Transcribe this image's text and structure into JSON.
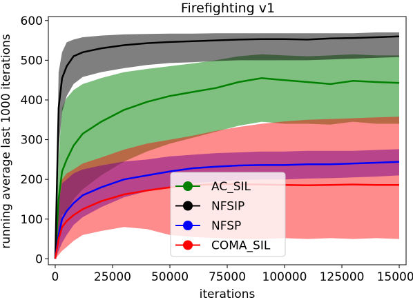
{
  "chart_data": {
    "type": "line",
    "title": "Firefighting v1",
    "xlabel": "iterations",
    "ylabel": "running average last 1000 iterations",
    "xlim": [
      -3000,
      153000
    ],
    "ylim": [
      -15,
      610
    ],
    "x_ticks": [
      0,
      25000,
      50000,
      75000,
      100000,
      125000,
      150000
    ],
    "y_ticks": [
      0,
      100,
      200,
      300,
      400,
      500,
      600
    ],
    "grid": false,
    "legend_position": "lower center",
    "x": [
      0,
      1500,
      3000,
      5000,
      8000,
      12000,
      20000,
      30000,
      40000,
      50000,
      60000,
      70000,
      80000,
      90000,
      100000,
      110000,
      120000,
      130000,
      140000,
      150000
    ],
    "series": [
      {
        "name": "AC_SIL",
        "color": "#008000",
        "values": [
          0,
          150,
          220,
          250,
          285,
          315,
          345,
          375,
          395,
          410,
          420,
          430,
          445,
          455,
          450,
          445,
          440,
          448,
          445,
          443
        ],
        "upper": [
          0,
          260,
          380,
          405,
          425,
          440,
          455,
          470,
          478,
          485,
          492,
          500,
          510,
          515,
          512,
          510,
          512,
          515,
          512,
          512
        ],
        "lower": [
          0,
          70,
          110,
          120,
          150,
          175,
          210,
          245,
          270,
          290,
          305,
          320,
          335,
          345,
          340,
          340,
          338,
          345,
          340,
          340
        ]
      },
      {
        "name": "NFSIP",
        "color": "#000000",
        "values": [
          0,
          380,
          455,
          485,
          510,
          520,
          530,
          538,
          543,
          546,
          548,
          550,
          552,
          553,
          553,
          552,
          555,
          556,
          558,
          560
        ],
        "upper": [
          0,
          470,
          520,
          545,
          552,
          558,
          562,
          565,
          566,
          567,
          567,
          568,
          568,
          568,
          568,
          568,
          568,
          568,
          570,
          570
        ],
        "lower": [
          0,
          280,
          370,
          410,
          440,
          458,
          470,
          480,
          488,
          493,
          495,
          498,
          500,
          500,
          500,
          500,
          502,
          504,
          506,
          508
        ]
      },
      {
        "name": "NFSP",
        "color": "#0000ff",
        "values": [
          0,
          60,
          100,
          120,
          140,
          160,
          180,
          200,
          210,
          220,
          228,
          232,
          235,
          236,
          236,
          238,
          238,
          240,
          242,
          244
        ],
        "upper": [
          0,
          140,
          190,
          200,
          215,
          225,
          235,
          245,
          250,
          258,
          262,
          266,
          268,
          270,
          270,
          272,
          272,
          272,
          274,
          276
        ],
        "lower": [
          0,
          20,
          40,
          60,
          85,
          105,
          130,
          155,
          170,
          182,
          190,
          195,
          198,
          200,
          200,
          202,
          203,
          205,
          207,
          210
        ]
      },
      {
        "name": "COMA_SIL",
        "color": "#ff0000",
        "values": [
          0,
          50,
          80,
          95,
          110,
          125,
          145,
          162,
          172,
          180,
          185,
          188,
          188,
          187,
          186,
          185,
          186,
          187,
          186,
          186
        ],
        "upper": [
          0,
          160,
          200,
          215,
          225,
          240,
          255,
          275,
          290,
          300,
          310,
          322,
          332,
          340,
          346,
          350,
          352,
          354,
          356,
          358
        ],
        "lower": [
          0,
          10,
          20,
          30,
          45,
          60,
          70,
          80,
          75,
          60,
          55,
          52,
          50,
          50,
          52,
          50,
          52,
          50,
          52,
          50
        ]
      }
    ]
  }
}
